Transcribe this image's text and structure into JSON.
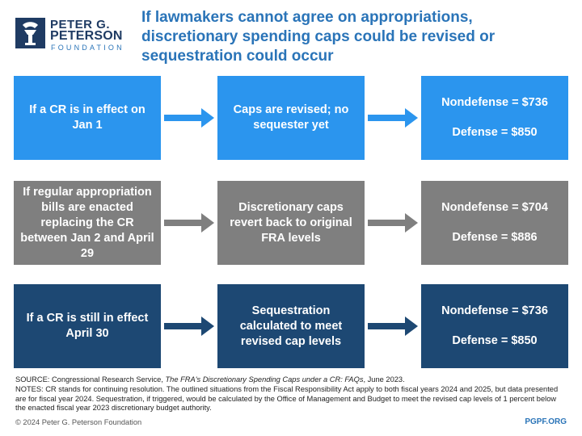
{
  "logo": {
    "line1": "PETER G.",
    "line2": "PETERSON",
    "line3": "FOUNDATION"
  },
  "title": "If lawmakers cannot agree on appropriations, discretionary spending caps could be revised or sequestration could occur",
  "rows": [
    {
      "condition": "If a CR is in effect on Jan 1",
      "outcome": "Caps are revised; no sequester yet",
      "nondefense": "Nondefense = $736",
      "defense": "Defense = $850"
    },
    {
      "condition": "If regular appropriation bills are enacted replacing the CR between Jan 2 and April 29",
      "outcome": "Discretionary caps revert back to original FRA levels",
      "nondefense": "Nondefense = $704",
      "defense": "Defense = $886"
    },
    {
      "condition": "If a CR is still in effect April 30",
      "outcome": "Sequestration calculated to meet revised cap levels",
      "nondefense": "Nondefense = $736",
      "defense": "Defense = $850"
    }
  ],
  "footer": {
    "source_prefix": "SOURCE: Congressional Research Service, ",
    "source_title": "The FRA's Discretionary Spending Caps under a CR: FAQs",
    "source_suffix": ", June 2023.",
    "notes": "NOTES: CR stands for continuing resolution. The outlined situations from the Fiscal Responsibility Act apply to both fiscal years 2024 and 2025, but data presented are for fiscal year 2024. Sequestration, if triggered, would be calculated by the Office of Management and Budget to meet the revised cap levels of 1 percent below the enacted fiscal year 2023 discretionary budget authority.",
    "copyright": "© 2024 Peter G. Peterson Foundation",
    "url": "PGPF.ORG"
  },
  "colors": {
    "row1": "#2b95ee",
    "row2": "#7f7f7f",
    "row3": "#1d4873",
    "title": "#2a74b8"
  }
}
